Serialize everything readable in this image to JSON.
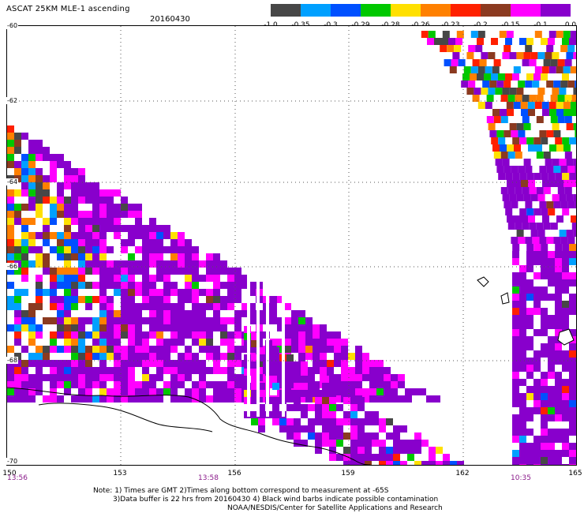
{
  "header": {
    "title": "ASCAT 25KM MLE-1 ascending",
    "date": "20160430"
  },
  "colorbar": {
    "ticks": [
      "-1.0",
      "-0.35",
      "-0.3",
      "-0.29",
      "-0.28",
      "-0.26",
      "-0.23",
      "-0.2",
      "-0.15",
      "-0.1",
      "0.0"
    ],
    "colors": [
      "#474747",
      "#00a0ff",
      "#0050ff",
      "#00c800",
      "#ffe000",
      "#ff8000",
      "#ff2000",
      "#8b3a20",
      "#ff00ff",
      "#8800cc"
    ]
  },
  "axes": {
    "lat_labels": [
      "-60",
      "-62",
      "-64",
      "-66",
      "-68",
      "-70"
    ],
    "lon_labels": [
      "150",
      "153",
      "156",
      "159",
      "162",
      "165"
    ]
  },
  "times": {
    "left": "13:56",
    "middle": "13:58",
    "right": "10:35"
  },
  "footer": {
    "line1": "Note: 1) Times are GMT 2)Times along bottom correspond to measurement at -65S",
    "line2": "3)Data buffer is 22 hrs from 20160430 4) Black wind barbs indicate possible contamination",
    "line3": "NOAA/NESDIS/Center for Satellite Applications and Research"
  }
}
